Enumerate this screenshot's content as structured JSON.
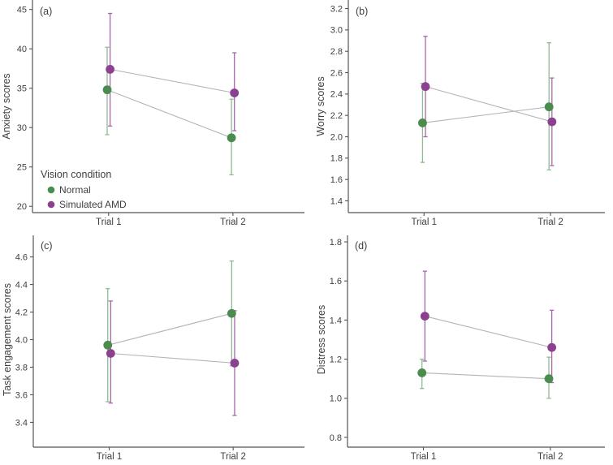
{
  "colors": {
    "normal": "#4a8c4e",
    "normal_error_bar": "#8fbb90",
    "simulated_amd": "#8c4190",
    "simulated_amd_error_bar": "#a567a9",
    "connector_gray": "#b4b4b4",
    "axis": "#555555",
    "text": "#3f3f3f",
    "background": "#ffffff"
  },
  "legend": {
    "title": "Vision condition",
    "items": [
      {
        "label": "Normal",
        "color_key": "normal"
      },
      {
        "label": "Simulated AMD",
        "color_key": "simulated_amd"
      }
    ]
  },
  "chart_data": [
    {
      "type": "line",
      "panel_label": "(a)",
      "ylabel": "Anxiety scores",
      "xlabel": "",
      "categories": [
        "Trial 1",
        "Trial 2"
      ],
      "ylim": [
        19.2,
        46.2
      ],
      "yticks": [
        20,
        25,
        30,
        35,
        40,
        45
      ],
      "ytick_labels": [
        "20",
        "25",
        "30",
        "35",
        "40",
        "45"
      ],
      "grid": false,
      "legend_position": "inside-bottom-left",
      "series": [
        {
          "name": "Normal",
          "color_key": "normal",
          "error_color_key": "normal_error_bar",
          "values": [
            34.8,
            28.7
          ],
          "err_low": [
            29.1,
            24.0
          ],
          "err_high": [
            40.2,
            33.6
          ]
        },
        {
          "name": "Simulated AMD",
          "color_key": "simulated_amd",
          "error_color_key": "simulated_amd_error_bar",
          "values": [
            37.4,
            34.4
          ],
          "err_low": [
            30.2,
            29.6
          ],
          "err_high": [
            44.5,
            39.5
          ]
        }
      ]
    },
    {
      "type": "line",
      "panel_label": "(b)",
      "ylabel": "Worry scores",
      "xlabel": "",
      "categories": [
        "Trial 1",
        "Trial 2"
      ],
      "ylim": [
        1.29,
        3.28
      ],
      "yticks": [
        1.4,
        1.6,
        1.8,
        2.0,
        2.2,
        2.4,
        2.6,
        2.8,
        3.0,
        3.2
      ],
      "ytick_labels": [
        "1.4",
        "1.6",
        "1.8",
        "2.0",
        "2.2",
        "2.4",
        "2.6",
        "2.8",
        "3.0",
        "3.2"
      ],
      "grid": false,
      "legend_position": "none",
      "series": [
        {
          "name": "Normal",
          "color_key": "normal",
          "error_color_key": "normal_error_bar",
          "values": [
            2.13,
            2.28
          ],
          "err_low": [
            1.76,
            1.69
          ],
          "err_high": [
            2.5,
            2.88
          ]
        },
        {
          "name": "Simulated AMD",
          "color_key": "simulated_amd",
          "error_color_key": "simulated_amd_error_bar",
          "values": [
            2.47,
            2.14
          ],
          "err_low": [
            2.0,
            1.73
          ],
          "err_high": [
            2.94,
            2.55
          ]
        }
      ]
    },
    {
      "type": "line",
      "panel_label": "(c)",
      "ylabel": "Task engagement scores",
      "xlabel": "",
      "categories": [
        "Trial 1",
        "Trial 2"
      ],
      "ylim": [
        3.22,
        4.78
      ],
      "yticks": [
        3.4,
        3.6,
        3.8,
        4.0,
        4.2,
        4.4,
        4.6
      ],
      "ytick_labels": [
        "3.4",
        "3.6",
        "3.8",
        "4.0",
        "4.2",
        "4.4",
        "4.6"
      ],
      "grid": false,
      "legend_position": "none",
      "series": [
        {
          "name": "Normal",
          "color_key": "normal",
          "error_color_key": "normal_error_bar",
          "values": [
            3.96,
            4.19
          ],
          "err_low": [
            3.55,
            3.81
          ],
          "err_high": [
            4.37,
            4.57
          ]
        },
        {
          "name": "Simulated AMD",
          "color_key": "simulated_amd",
          "error_color_key": "simulated_amd_error_bar",
          "values": [
            3.9,
            3.83
          ],
          "err_low": [
            3.54,
            3.45
          ],
          "err_high": [
            4.28,
            4.21
          ]
        }
      ]
    },
    {
      "type": "line",
      "panel_label": "(d)",
      "ylabel": "Distress scores",
      "xlabel": "",
      "categories": [
        "Trial 1",
        "Trial 2"
      ],
      "ylim": [
        0.75,
        1.85
      ],
      "yticks": [
        0.8,
        1.0,
        1.2,
        1.4,
        1.6,
        1.8
      ],
      "ytick_labels": [
        "0.8",
        "1.0",
        "1.2",
        "1.4",
        "1.6",
        "1.8"
      ],
      "grid": false,
      "legend_position": "none",
      "series": [
        {
          "name": "Normal",
          "color_key": "normal",
          "error_color_key": "normal_error_bar",
          "values": [
            1.13,
            1.1
          ],
          "err_low": [
            1.05,
            1.0
          ],
          "err_high": [
            1.2,
            1.21
          ]
        },
        {
          "name": "Simulated AMD",
          "color_key": "simulated_amd",
          "error_color_key": "simulated_amd_error_bar",
          "values": [
            1.42,
            1.26
          ],
          "err_low": [
            1.19,
            1.08
          ],
          "err_high": [
            1.65,
            1.45
          ]
        }
      ]
    }
  ]
}
